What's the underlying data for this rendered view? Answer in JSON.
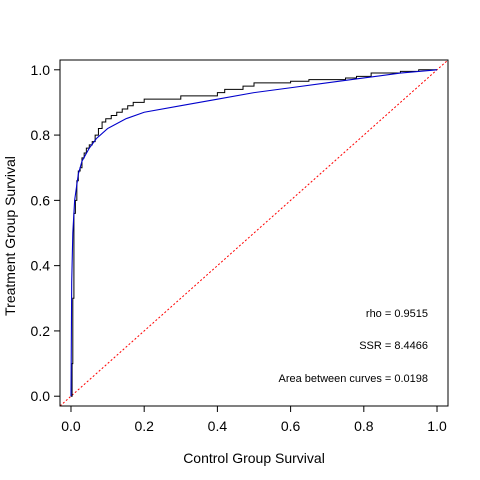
{
  "chart_data": {
    "type": "line",
    "title": "",
    "xlabel": "Control Group Survival",
    "ylabel": "Treatment Group Survival",
    "xlim": [
      -0.03,
      1.03
    ],
    "ylim": [
      -0.03,
      1.03
    ],
    "xticks": [
      0.0,
      0.2,
      0.4,
      0.6,
      0.8,
      1.0
    ],
    "xtick_labels": [
      "0.0",
      "0.2",
      "0.4",
      "0.6",
      "0.8",
      "1.0"
    ],
    "yticks": [
      0.0,
      0.2,
      0.4,
      0.6,
      0.8,
      1.0
    ],
    "ytick_labels": [
      "0.0",
      "0.2",
      "0.4",
      "0.6",
      "0.8",
      "1.0"
    ],
    "grid": false,
    "legend": "none",
    "annotations": [
      "rho = 0.9515",
      "SSR = 8.4466",
      "Area between curves = 0.0198"
    ],
    "series": [
      {
        "style": "step",
        "color": "#000000",
        "x": [
          0.0,
          0.003,
          0.005,
          0.008,
          0.012,
          0.016,
          0.02,
          0.025,
          0.03,
          0.036,
          0.042,
          0.05,
          0.058,
          0.066,
          0.075,
          0.085,
          0.095,
          0.11,
          0.125,
          0.14,
          0.155,
          0.17,
          0.185,
          0.2,
          0.24,
          0.3,
          0.4,
          0.42,
          0.47,
          0.5,
          0.55,
          0.6,
          0.65,
          0.7,
          0.75,
          0.78,
          0.8,
          0.82,
          0.85,
          0.9,
          0.95,
          1.0
        ],
        "y": [
          0.0,
          0.1,
          0.3,
          0.56,
          0.6,
          0.66,
          0.69,
          0.7,
          0.73,
          0.745,
          0.76,
          0.77,
          0.78,
          0.8,
          0.82,
          0.84,
          0.85,
          0.86,
          0.87,
          0.88,
          0.89,
          0.9,
          0.9,
          0.91,
          0.91,
          0.92,
          0.93,
          0.94,
          0.95,
          0.96,
          0.96,
          0.965,
          0.97,
          0.97,
          0.975,
          0.98,
          0.98,
          0.99,
          0.99,
          0.995,
          1.0,
          1.0
        ]
      },
      {
        "style": "smooth",
        "color": "#0000cc",
        "x": [
          0.0,
          0.002,
          0.005,
          0.01,
          0.02,
          0.03,
          0.05,
          0.07,
          0.1,
          0.15,
          0.2,
          0.3,
          0.4,
          0.5,
          0.6,
          0.7,
          0.8,
          0.9,
          1.0
        ],
        "y": [
          0.0,
          0.35,
          0.5,
          0.6,
          0.68,
          0.72,
          0.76,
          0.79,
          0.82,
          0.85,
          0.87,
          0.89,
          0.91,
          0.93,
          0.945,
          0.96,
          0.975,
          0.99,
          1.0
        ]
      },
      {
        "style": "dashed",
        "color": "#ff0000",
        "x": [
          -0.03,
          1.03
        ],
        "y": [
          -0.03,
          1.03
        ]
      }
    ]
  }
}
